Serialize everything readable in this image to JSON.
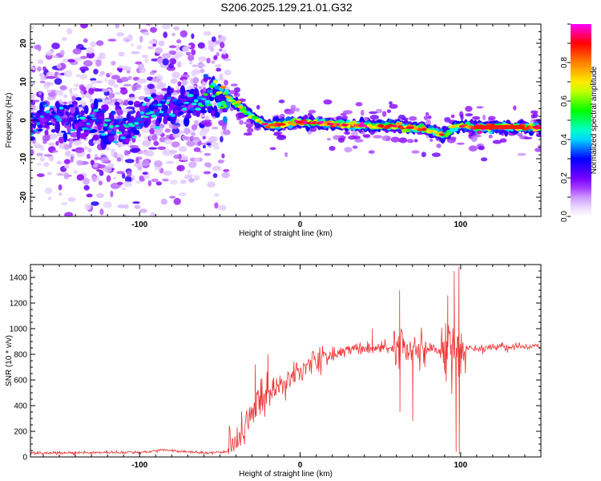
{
  "title": "S206.2025.129.21.01.G32",
  "colors": {
    "snr_line": "#ee3333",
    "background": "#ffffff",
    "axis": "#000000"
  },
  "chart_data": [
    {
      "type": "heatmap",
      "name": "spectrogram",
      "xlabel": "Height of straight line (km)",
      "ylabel": "Frequency (Hz)",
      "xlim": [
        -168,
        150
      ],
      "ylim": [
        -25,
        25
      ],
      "x_ticks": [
        -100,
        0,
        100
      ],
      "y_ticks": [
        -20,
        -10,
        0,
        10,
        20
      ],
      "colorbar": {
        "label": "Normalized spectral amplitude",
        "range": [
          0,
          1
        ],
        "ticks": [
          0.0,
          0.2,
          0.4,
          0.6,
          0.8
        ],
        "tick_labels": [
          "0.0",
          "0.2",
          "0.4",
          "0.6",
          "0.8"
        ],
        "colormap": [
          "#ffffff",
          "#d9b3ff",
          "#8000ff",
          "#0000ff",
          "#00ffff",
          "#00ff00",
          "#ffff00",
          "#ff8000",
          "#ff0000",
          "#ff00ff"
        ]
      },
      "ridge": [
        {
          "x": -168,
          "f": 1.0,
          "a": 0.35
        },
        {
          "x": -140,
          "f": 1.0,
          "a": 0.4
        },
        {
          "x": -110,
          "f": -2.0,
          "a": 0.45
        },
        {
          "x": -90,
          "f": 2.5,
          "a": 0.45
        },
        {
          "x": -70,
          "f": 3.5,
          "a": 0.4
        },
        {
          "x": -55,
          "f": 6.0,
          "a": 0.55
        },
        {
          "x": -48,
          "f": 6.5,
          "a": 0.8
        },
        {
          "x": -40,
          "f": 4.5,
          "a": 0.7
        },
        {
          "x": -30,
          "f": 1.0,
          "a": 0.6
        },
        {
          "x": -20,
          "f": -1.5,
          "a": 0.85
        },
        {
          "x": 0,
          "f": -0.5,
          "a": 0.95
        },
        {
          "x": 20,
          "f": -1.0,
          "a": 0.9
        },
        {
          "x": 40,
          "f": -1.5,
          "a": 0.95
        },
        {
          "x": 60,
          "f": -1.5,
          "a": 0.85
        },
        {
          "x": 80,
          "f": -2.5,
          "a": 0.8
        },
        {
          "x": 90,
          "f": -4.0,
          "a": 0.7
        },
        {
          "x": 96,
          "f": -1.5,
          "a": 0.75
        },
        {
          "x": 110,
          "f": -1.8,
          "a": 0.95
        },
        {
          "x": 135,
          "f": -1.8,
          "a": 0.95
        },
        {
          "x": 150,
          "f": -1.8,
          "a": 0.9
        }
      ]
    },
    {
      "type": "line",
      "name": "snr",
      "xlabel": "Height of straight line (km)",
      "ylabel": "SNR (10 * v/v)",
      "xlim": [
        -168,
        150
      ],
      "ylim": [
        0,
        1500
      ],
      "x_ticks": [
        -100,
        0,
        100
      ],
      "y_ticks": [
        0,
        200,
        400,
        600,
        800,
        1000,
        1200,
        1400
      ],
      "trend": [
        {
          "x": -168,
          "snr": 30
        },
        {
          "x": -100,
          "snr": 35
        },
        {
          "x": -85,
          "snr": 55
        },
        {
          "x": -60,
          "snr": 30
        },
        {
          "x": -45,
          "snr": 40
        },
        {
          "x": -38,
          "snr": 150
        },
        {
          "x": -30,
          "snr": 380
        },
        {
          "x": -20,
          "snr": 480
        },
        {
          "x": -10,
          "snr": 560
        },
        {
          "x": 0,
          "snr": 680
        },
        {
          "x": 10,
          "snr": 760
        },
        {
          "x": 30,
          "snr": 830
        },
        {
          "x": 50,
          "snr": 850
        },
        {
          "x": 80,
          "snr": 830
        },
        {
          "x": 100,
          "snr": 850
        },
        {
          "x": 150,
          "snr": 860
        }
      ],
      "peaks": [
        {
          "x": -28,
          "snr": 720
        },
        {
          "x": -20,
          "snr": 800
        },
        {
          "x": 45,
          "snr": 1000
        },
        {
          "x": 62,
          "snr": 1300
        },
        {
          "x": 92,
          "snr": 1260
        },
        {
          "x": 96,
          "snr": 1450
        },
        {
          "x": 99,
          "snr": 1480
        }
      ],
      "troughs": [
        {
          "x": 62,
          "snr": 350
        },
        {
          "x": 70,
          "snr": 280
        },
        {
          "x": 97,
          "snr": 40
        },
        {
          "x": 99,
          "snr": 20
        }
      ]
    }
  ]
}
